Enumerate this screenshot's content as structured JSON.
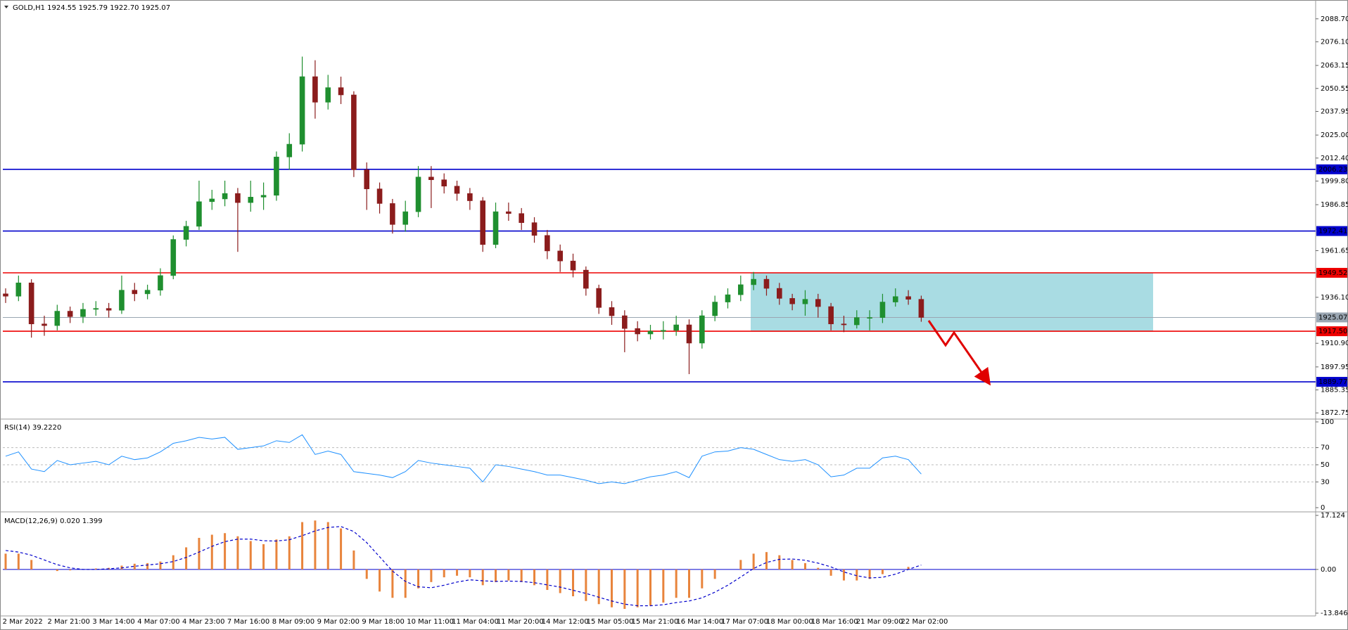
{
  "chart_data": [
    {
      "type": "candlestick",
      "title": "GOLD,H1 1924.55 1925.79 1922.70 1925.07",
      "x_labels": [
        "2 Mar 2022",
        "2 Mar 21:00",
        "3 Mar 14:00",
        "4 Mar 07:00",
        "4 Mar 23:00",
        "7 Mar 16:00",
        "8 Mar 09:00",
        "9 Mar 02:00",
        "9 Mar 18:00",
        "10 Mar 11:00",
        "11 Mar 04:00",
        "11 Mar 20:00",
        "14 Mar 12:00",
        "15 Mar 05:00",
        "15 Mar 21:00",
        "16 Mar 14:00",
        "17 Mar 07:00",
        "18 Mar 00:00",
        "18 Mar 16:00",
        "21 Mar 09:00",
        "22 Mar 02:00"
      ],
      "open": [
        1938,
        1936.7,
        1944,
        1921.5,
        1920.6,
        1928.5,
        1925.5,
        1929.5,
        1930,
        1929,
        1940,
        1938,
        1940,
        1948,
        1967.8,
        1975,
        1988.5,
        1990,
        1993,
        1988,
        1991,
        1992,
        2013,
        2020,
        2057,
        2043,
        2051,
        2047,
        2006,
        1995.5,
        1987.5,
        1976,
        1983,
        2002,
        2000.5,
        1997,
        1993,
        1989,
        1965,
        1983,
        1982,
        1977,
        1970,
        1961.5,
        1956,
        1951,
        1941,
        1930.5,
        1926,
        1919,
        1916,
        1917.5,
        1918,
        1921,
        1911,
        1926,
        1933.5,
        1937.5,
        1943,
        1946,
        1941,
        1935.5,
        1932.5,
        1935,
        1931,
        1921.5,
        1921,
        1925,
        1925,
        1933.5,
        1936.5,
        1935
      ],
      "high": [
        1941,
        1948,
        1946,
        1926,
        1932,
        1931,
        1933,
        1934,
        1933,
        1948,
        1944,
        1943,
        1952,
        1970,
        1978,
        2000,
        1995,
        2000,
        1996,
        2000,
        1999,
        2016,
        2026,
        2068,
        2066,
        2058,
        2057,
        2049,
        2010,
        1999,
        1990,
        1989,
        2008,
        2008,
        2004,
        2000,
        1996,
        1991,
        1988,
        1988,
        1985,
        1980,
        1973,
        1965,
        1960,
        1953,
        1943,
        1934,
        1929,
        1923,
        1921,
        1923,
        1926,
        1924,
        1929,
        1937,
        1941,
        1948,
        1950,
        1948,
        1944,
        1938,
        1940,
        1938,
        1933,
        1926,
        1929,
        1929,
        1938,
        1941,
        1940,
        1937
      ],
      "low": [
        1933,
        1934,
        1914,
        1915,
        1918,
        1922,
        1922,
        1926,
        1925,
        1927,
        1934,
        1935,
        1937,
        1946,
        1964,
        1973,
        1984,
        1986,
        1961,
        1983,
        1984,
        1989,
        2006,
        2016,
        2034,
        2039,
        2042,
        2002,
        1984,
        1982,
        1971,
        1972,
        1980,
        1985,
        1993,
        1989,
        1984,
        1961,
        1963,
        1978,
        1973,
        1966,
        1957,
        1950,
        1947,
        1937,
        1927,
        1921,
        1906,
        1912,
        1913,
        1913,
        1915,
        1894,
        1908,
        1923,
        1930,
        1934,
        1940,
        1937,
        1932,
        1929,
        1926,
        1925,
        1918,
        1917,
        1919,
        1918,
        1922,
        1931,
        1932,
        1922.7
      ],
      "close": [
        1936.7,
        1944,
        1921.5,
        1920.6,
        1928.5,
        1925.5,
        1929.5,
        1930,
        1929,
        1940,
        1938,
        1940,
        1948,
        1967.8,
        1975,
        1988.5,
        1990,
        1993,
        1988,
        1991,
        1992,
        2013,
        2020,
        2057,
        2043,
        2051,
        2047,
        2006,
        1995.5,
        1987.5,
        1976,
        1983,
        2002,
        2000.5,
        1997,
        1993,
        1989,
        1965,
        1983,
        1982,
        1977,
        1970,
        1961.5,
        1956,
        1951,
        1941,
        1930.5,
        1926,
        1919,
        1916,
        1917.5,
        1918,
        1921,
        1911,
        1926,
        1933.5,
        1937.5,
        1943,
        1946,
        1941,
        1935.5,
        1932.5,
        1935,
        1931,
        1921.5,
        1921,
        1925,
        1925,
        1933.5,
        1936.5,
        1935,
        1925.07
      ],
      "up_color": "#1f8f2f",
      "down_color": "#8b1c1c",
      "ylim": [
        1871.3,
        2096.7
      ],
      "yticks": [
        {
          "value": 2088.7,
          "label": "2088.70"
        },
        {
          "value": 2076.1,
          "label": "2076.10"
        },
        2063.15,
        2050.55,
        2037.95,
        {
          "value": 2025,
          "label": "2025.00"
        },
        {
          "value": 2012.4,
          "label": "2012.40"
        },
        {
          "value": 1999.8,
          "label": "1999.80"
        },
        1986.85,
        1961.65,
        {
          "value": 1936.1,
          "label": "1936.10"
        },
        {
          "value": 1910.9,
          "label": "1910.90"
        },
        1897.95,
        1885.35,
        1872.75
      ],
      "levels": [
        {
          "value": 2006.23,
          "color": "#0000cc"
        },
        {
          "value": 1972.41,
          "color": "#0000cc"
        },
        {
          "value": 1949.52,
          "color": "#ee0000"
        },
        {
          "value": 1925.07,
          "color": "#9aa6b2"
        },
        {
          "value": 1917.5,
          "label": "1917.50",
          "color": "#ee0000"
        },
        {
          "value": 1889.77,
          "color": "#0000cc"
        }
      ],
      "zone_color": "#a9dce3"
    },
    {
      "type": "line",
      "title": "RSI(14) 39.2220",
      "color": "#1e90ff",
      "values": [
        60,
        65,
        45,
        42,
        55,
        50,
        52,
        54,
        50,
        60,
        56,
        58,
        65,
        75,
        78,
        82,
        80,
        82,
        68,
        70,
        72,
        78,
        76,
        85,
        62,
        66,
        62,
        42,
        40,
        38,
        35,
        42,
        55,
        52,
        50,
        48,
        46,
        30,
        50,
        48,
        45,
        42,
        38,
        38,
        35,
        32,
        28,
        30,
        28,
        32,
        36,
        38,
        42,
        35,
        60,
        65,
        66,
        70,
        68,
        62,
        56,
        54,
        56,
        50,
        36,
        38,
        46,
        46,
        58,
        60,
        56,
        39.222
      ],
      "ylim": [
        0,
        100
      ],
      "yticks": [
        0,
        30,
        50,
        70,
        100
      ]
    },
    {
      "type": "macd",
      "title": "MACD(12,26,9) 0.020 1.399",
      "series": [
        {
          "name": "MACD",
          "color": "#e8843c",
          "values": [
            5,
            5,
            3,
            0,
            -0.5,
            -0.3,
            0,
            0.3,
            0.5,
            1.2,
            1.8,
            2,
            2.5,
            4.5,
            7,
            10,
            11,
            11.5,
            10.5,
            9,
            8,
            9.5,
            10.5,
            15,
            15.5,
            15,
            13,
            6,
            -3,
            -7,
            -9,
            -9,
            -6,
            -4,
            -2.5,
            -2,
            -2.5,
            -5,
            -4,
            -3.5,
            -4,
            -5,
            -6.5,
            -7.5,
            -8.5,
            -10,
            -11,
            -12,
            -12.5,
            -12,
            -11.5,
            -10.5,
            -9,
            -9,
            -6,
            -3,
            0,
            3,
            5,
            5.5,
            4.5,
            3,
            2,
            0.5,
            -2,
            -3.5,
            -3.5,
            -3,
            -1.5,
            0,
            0.8,
            0.02
          ]
        },
        {
          "name": "Signal",
          "color": "#0000cc",
          "values": [
            6,
            5.5,
            4.5,
            3,
            1.5,
            0.5,
            0,
            0,
            0.2,
            0.5,
            1,
            1.4,
            1.8,
            2.5,
            3.8,
            5.5,
            7.3,
            8.8,
            9.6,
            9.6,
            9.1,
            9,
            9.4,
            10.7,
            12.2,
            13.3,
            13.6,
            12,
            8.5,
            4,
            -0.5,
            -3.8,
            -5.5,
            -5.8,
            -5,
            -4,
            -3.3,
            -3.6,
            -3.8,
            -3.7,
            -3.8,
            -4.2,
            -4.9,
            -5.6,
            -6.6,
            -7.6,
            -8.8,
            -10,
            -11,
            -11.5,
            -11.5,
            -11.2,
            -10.5,
            -10,
            -9,
            -7.2,
            -5,
            -2.4,
            0.3,
            2.2,
            3.2,
            3.3,
            2.9,
            2,
            0.8,
            -0.8,
            -2,
            -2.7,
            -2.5,
            -1.5,
            0,
            1.399
          ]
        }
      ],
      "ylim": [
        -13.846,
        17.124
      ],
      "yticks": [
        17.124,
        {
          "value": 0,
          "label": "0.00"
        },
        -13.846
      ]
    }
  ]
}
